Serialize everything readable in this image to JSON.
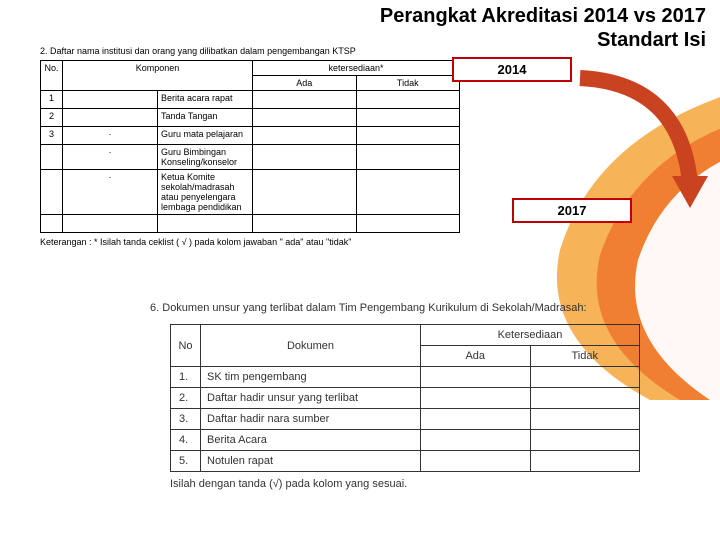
{
  "title": {
    "line1": "Perangkat Akreditasi 2014 vs 2017",
    "line2": "Standart Isi"
  },
  "labels": {
    "year2014": "2014",
    "year2017": "2017"
  },
  "colors": {
    "box_border": "#c00000",
    "arrow_fill": "#c94320",
    "swoosh_outer": "#f4a63a",
    "swoosh_inner": "#f0762a"
  },
  "table1": {
    "number": "2.",
    "caption": "Daftar nama institusi dan orang yang dilibatkan dalam pengembangan KTSP",
    "head": {
      "no": "No.",
      "komponen": "Komponen",
      "ketersediaan": "ketersediaan*",
      "ada": "Ada",
      "tidak": "Tidak"
    },
    "rows": [
      {
        "no": "1",
        "bullet": "",
        "text": "Berita acara rapat"
      },
      {
        "no": "2",
        "bullet": "",
        "text": "Tanda Tangan"
      },
      {
        "no": "3",
        "bullet": "·",
        "text": "Guru mata pelajaran"
      },
      {
        "no": "",
        "bullet": "·",
        "text": "Guru Bimbingan Konseling/konselor"
      },
      {
        "no": "",
        "bullet": "·",
        "text": "Ketua Komite sekolah/madrasah atau penyelengara lembaga pendidikan"
      },
      {
        "no": "",
        "bullet": "",
        "text": ""
      }
    ],
    "note": "Keterangan : * Isilah tanda ceklist ( √ ) pada kolom jawaban \" ada\" atau \"tidak\""
  },
  "table2": {
    "number": "6.",
    "caption": "Dokumen unsur yang terlibat dalam Tim Pengembang Kurikulum di Sekolah/Madrasah:",
    "head": {
      "no": "No",
      "dokumen": "Dokumen",
      "ketersediaan": "Ketersediaan",
      "ada": "Ada",
      "tidak": "Tidak"
    },
    "rows": [
      {
        "no": "1.",
        "text": "SK tim pengembang"
      },
      {
        "no": "2.",
        "text": "Daftar hadir unsur yang terlibat"
      },
      {
        "no": "3.",
        "text": "Daftar hadir nara sumber"
      },
      {
        "no": "4.",
        "text": "Berita Acara"
      },
      {
        "no": "5.",
        "text": "Notulen rapat"
      }
    ],
    "note": "Isilah dengan tanda (√) pada kolom yang sesuai."
  }
}
